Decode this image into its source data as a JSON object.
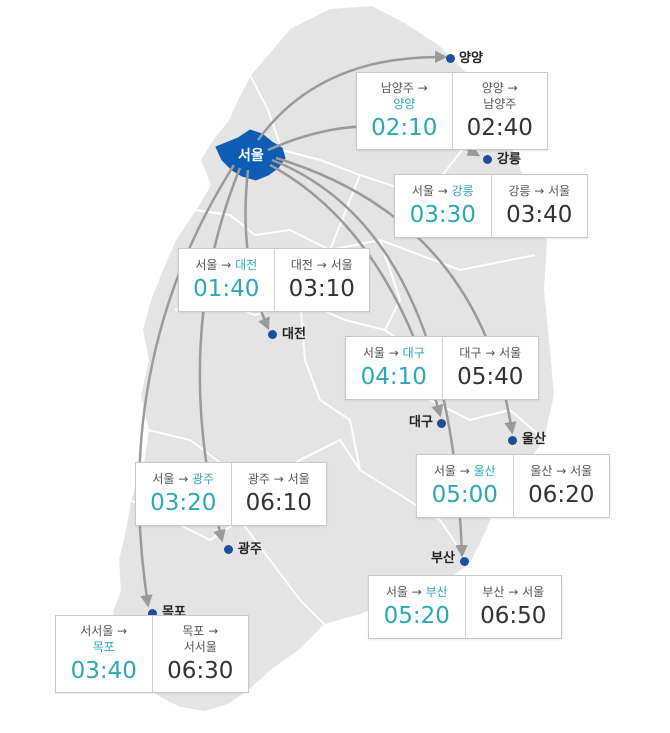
{
  "colors": {
    "land": "#e4e4e4",
    "border": "#ffffff",
    "seoul_fill": "#0d5cb6",
    "arrow": "#9a9a9a",
    "dot": "#1b4f9c",
    "teal": "#2aa9b5"
  },
  "seoul": {
    "label": "서울"
  },
  "cities": {
    "yangyang": "양양",
    "gangneung": "강릉",
    "daejeon": "대전",
    "daegu": "대구",
    "ulsan": "울산",
    "gwangju": "광주",
    "busan": "부산",
    "mokpo": "목포"
  },
  "cards": [
    {
      "id": "namyangju-yangyang",
      "out_line1": "남양주 →",
      "out_line2": "양양",
      "out_time": "02:10",
      "in_line1": "양양 →",
      "in_line2": "남양주",
      "in_time": "02:40"
    },
    {
      "id": "seoul-gangneung",
      "out_from": "서울 →",
      "out_to": "강릉",
      "out_time": "03:30",
      "in_route": "강릉 → 서울",
      "in_time": "03:40"
    },
    {
      "id": "seoul-daejeon",
      "out_from": "서울 →",
      "out_to": "대전",
      "out_time": "01:40",
      "in_route": "대전 → 서울",
      "in_time": "03:10"
    },
    {
      "id": "seoul-daegu",
      "out_from": "서울 →",
      "out_to": "대구",
      "out_time": "04:10",
      "in_route": "대구 → 서울",
      "in_time": "05:40"
    },
    {
      "id": "seoul-ulsan",
      "out_from": "서울 →",
      "out_to": "울산",
      "out_time": "05:00",
      "in_route": "울산 → 서울",
      "in_time": "06:20"
    },
    {
      "id": "seoul-gwangju",
      "out_from": "서울 →",
      "out_to": "광주",
      "out_time": "03:20",
      "in_route": "광주 → 서울",
      "in_time": "06:10"
    },
    {
      "id": "seoul-busan",
      "out_from": "서울 →",
      "out_to": "부산",
      "out_time": "05:20",
      "in_route": "부산 → 서울",
      "in_time": "06:50"
    },
    {
      "id": "seoseoul-mokpo",
      "out_line1": "서서울 →",
      "out_line2": "목포",
      "out_time": "03:40",
      "in_line1": "목포 →",
      "in_line2": "서서울",
      "in_time": "06:30"
    }
  ]
}
